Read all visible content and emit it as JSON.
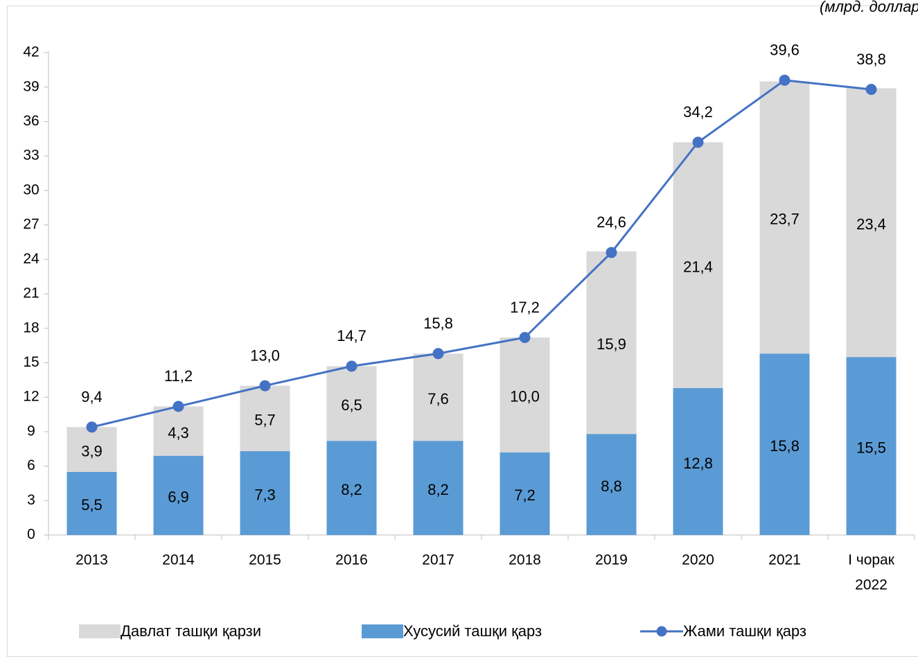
{
  "unit_note": "(млрд. доллар)",
  "chart_data": {
    "type": "bar",
    "stacked": true,
    "categories": [
      "2013",
      "2014",
      "2015",
      "2016",
      "2017",
      "2018",
      "2019",
      "2020",
      "2021",
      "I чорак 2022"
    ],
    "ylim": [
      0,
      42
    ],
    "yticks": [
      0,
      3,
      6,
      9,
      12,
      15,
      18,
      21,
      24,
      27,
      30,
      33,
      36,
      39,
      42
    ],
    "series": [
      {
        "name": "Хусусий ташқи қарз",
        "type": "bar",
        "color": "#5b9bd5",
        "values": [
          5.5,
          6.9,
          7.3,
          8.2,
          8.2,
          7.2,
          8.8,
          12.8,
          15.8,
          15.5
        ]
      },
      {
        "name": "Давлат ташқи қарзи",
        "type": "bar",
        "color": "#d9d9d9",
        "values": [
          3.9,
          4.3,
          5.7,
          6.5,
          7.6,
          10.0,
          15.9,
          21.4,
          23.7,
          23.4
        ]
      },
      {
        "name": "Жами ташқи қарз",
        "type": "line",
        "color": "#4472c4",
        "values": [
          9.4,
          11.2,
          13.0,
          14.7,
          15.8,
          17.2,
          24.6,
          34.2,
          39.6,
          38.8
        ]
      }
    ],
    "legend_position": "bottom",
    "grid": false
  },
  "legend": [
    {
      "label": "Давлат ташқи қарзи",
      "kind": "box",
      "color": "#d9d9d9"
    },
    {
      "label": "Хусусий ташқи қарз",
      "kind": "box",
      "color": "#5b9bd5"
    },
    {
      "label": "Жами ташқи қарз",
      "kind": "line",
      "color": "#4472c4"
    }
  ]
}
